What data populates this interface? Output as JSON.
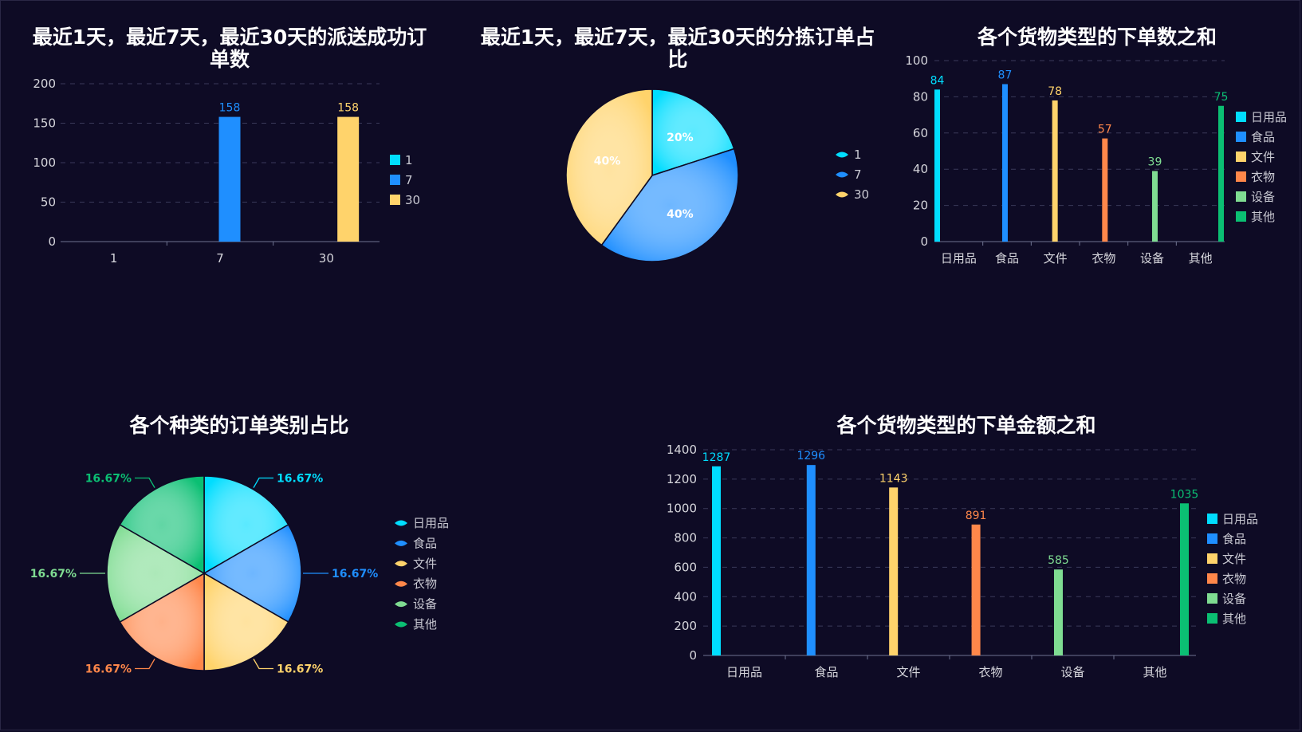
{
  "colors": {
    "background": "#0e0b25",
    "cyan": "#00ddff",
    "blue": "#1f8fff",
    "yellow": "#ffd36b",
    "orange": "#ff874a",
    "lightgreen": "#7fdc92",
    "green": "#0bbf73"
  },
  "chart_data": [
    {
      "type": "bar",
      "title": "最近1天，最近7天，最近30天的派送成功订单数",
      "title_lines": [
        "最近1天，最近7天，最近30天的派送成功订",
        "单数"
      ],
      "categories": [
        "1",
        "7",
        "30"
      ],
      "series": [
        {
          "name": "1",
          "values": [
            null,
            null,
            null
          ],
          "color": "#00ddff"
        },
        {
          "name": "7",
          "values": [
            null,
            158,
            null
          ],
          "color": "#1f8fff"
        },
        {
          "name": "30",
          "values": [
            null,
            null,
            158
          ],
          "color": "#ffd36b"
        }
      ],
      "ylim": [
        0,
        200
      ],
      "yticks": [
        "0",
        "50",
        "100",
        "150",
        "200"
      ],
      "grid": true,
      "legend": "right"
    },
    {
      "type": "pie",
      "title": "最近1天，最近7天，最近30天的分拣订单占比",
      "title_lines": [
        "最近1天，最近7天，最近30天的分拣订单占",
        "比"
      ],
      "slices": [
        {
          "name": "1",
          "percent": 20,
          "label": "20%",
          "color": "#00ddff"
        },
        {
          "name": "7",
          "percent": 40,
          "label": "40%",
          "color": "#1f8fff"
        },
        {
          "name": "30",
          "percent": 40,
          "label": "40%",
          "color": "#ffd36b"
        }
      ],
      "legend": "right"
    },
    {
      "type": "bar",
      "title": "各个货物类型的下单数之和",
      "categories": [
        "日用品",
        "食品",
        "文件",
        "衣物",
        "设备",
        "其他"
      ],
      "values": [
        84,
        87,
        78,
        57,
        39,
        75
      ],
      "value_labels": [
        "84",
        "87",
        "78",
        "57",
        "39",
        "75"
      ],
      "colors": [
        "#00ddff",
        "#1f8fff",
        "#ffd36b",
        "#ff874a",
        "#7fdc92",
        "#0bbf73"
      ],
      "ylim": [
        0,
        100
      ],
      "yticks": [
        "0",
        "20",
        "40",
        "60",
        "80",
        "100"
      ],
      "grid": true,
      "legend": "right"
    },
    {
      "type": "pie",
      "title": "各个种类的订单类别占比",
      "slices": [
        {
          "name": "日用品",
          "percent": 16.67,
          "label": "16.67%",
          "color": "#00ddff"
        },
        {
          "name": "食品",
          "percent": 16.67,
          "label": "16.67%",
          "color": "#1f8fff"
        },
        {
          "name": "文件",
          "percent": 16.67,
          "label": "16.67%",
          "color": "#ffd36b"
        },
        {
          "name": "衣物",
          "percent": 16.67,
          "label": "16.67%",
          "color": "#ff874a"
        },
        {
          "name": "设备",
          "percent": 16.67,
          "label": "16.67%",
          "color": "#7fdc92"
        },
        {
          "name": "其他",
          "percent": 16.67,
          "label": "16.67%",
          "color": "#0bbf73"
        }
      ],
      "legend": "right"
    },
    {
      "type": "bar",
      "title": "各个货物类型的下单金额之和",
      "categories": [
        "日用品",
        "食品",
        "文件",
        "衣物",
        "设备",
        "其他"
      ],
      "values": [
        1287,
        1296,
        1143,
        891,
        585,
        1035
      ],
      "value_labels": [
        "1287",
        "1296",
        "1143",
        "891",
        "585",
        "1035"
      ],
      "colors": [
        "#00ddff",
        "#1f8fff",
        "#ffd36b",
        "#ff874a",
        "#7fdc92",
        "#0bbf73"
      ],
      "ylim": [
        0,
        1400
      ],
      "yticks": [
        "0",
        "200",
        "400",
        "600",
        "800",
        "1000",
        "1200",
        "1400"
      ],
      "grid": true,
      "legend": "right"
    }
  ]
}
